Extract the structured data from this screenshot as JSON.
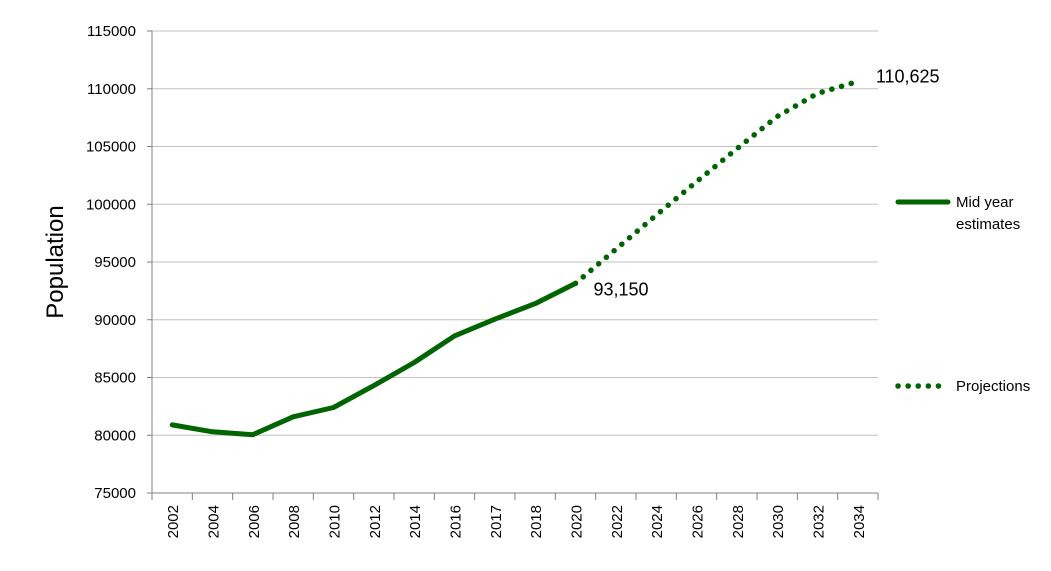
{
  "chart_data": {
    "type": "line",
    "title": "",
    "xlabel": "",
    "ylabel": "Population",
    "ylim": [
      75000,
      115000
    ],
    "yticks": [
      75000,
      80000,
      85000,
      90000,
      95000,
      100000,
      105000,
      110000,
      115000
    ],
    "ytick_labels": [
      "75000",
      "80000",
      "85000",
      "90000",
      "95000",
      "100000",
      "105000",
      "110000",
      "115000"
    ],
    "categories": [
      "2002",
      "2004",
      "2006",
      "2008",
      "2010",
      "2012",
      "2014",
      "2016",
      "2017",
      "2018",
      "2020",
      "2022",
      "2024",
      "2026",
      "2028",
      "2030",
      "2032",
      "2034"
    ],
    "grid": true,
    "color": "#006400",
    "series": [
      {
        "name": "Mid year estimates",
        "style": "solid",
        "values": [
          80900,
          80300,
          80050,
          81600,
          82400,
          84300,
          86300,
          88600,
          90050,
          91400,
          93150,
          null,
          null,
          null,
          null,
          null,
          null,
          null
        ]
      },
      {
        "name": "Projections",
        "style": "dotted",
        "values": [
          null,
          null,
          null,
          null,
          null,
          null,
          null,
          null,
          null,
          null,
          93150,
          96100,
          99050,
          101950,
          104800,
          107600,
          109600,
          110625
        ]
      }
    ],
    "annotations": [
      {
        "text": "93,150",
        "category_index": 10,
        "value": 93150
      },
      {
        "text": "110,625",
        "category_index": 17,
        "value": 110625
      }
    ],
    "legend": {
      "placement": "right",
      "entries": [
        {
          "line1": "Mid year",
          "line2": "estimates",
          "style": "solid"
        },
        {
          "line1": "Projections",
          "line2": "",
          "style": "dotted"
        }
      ]
    }
  }
}
